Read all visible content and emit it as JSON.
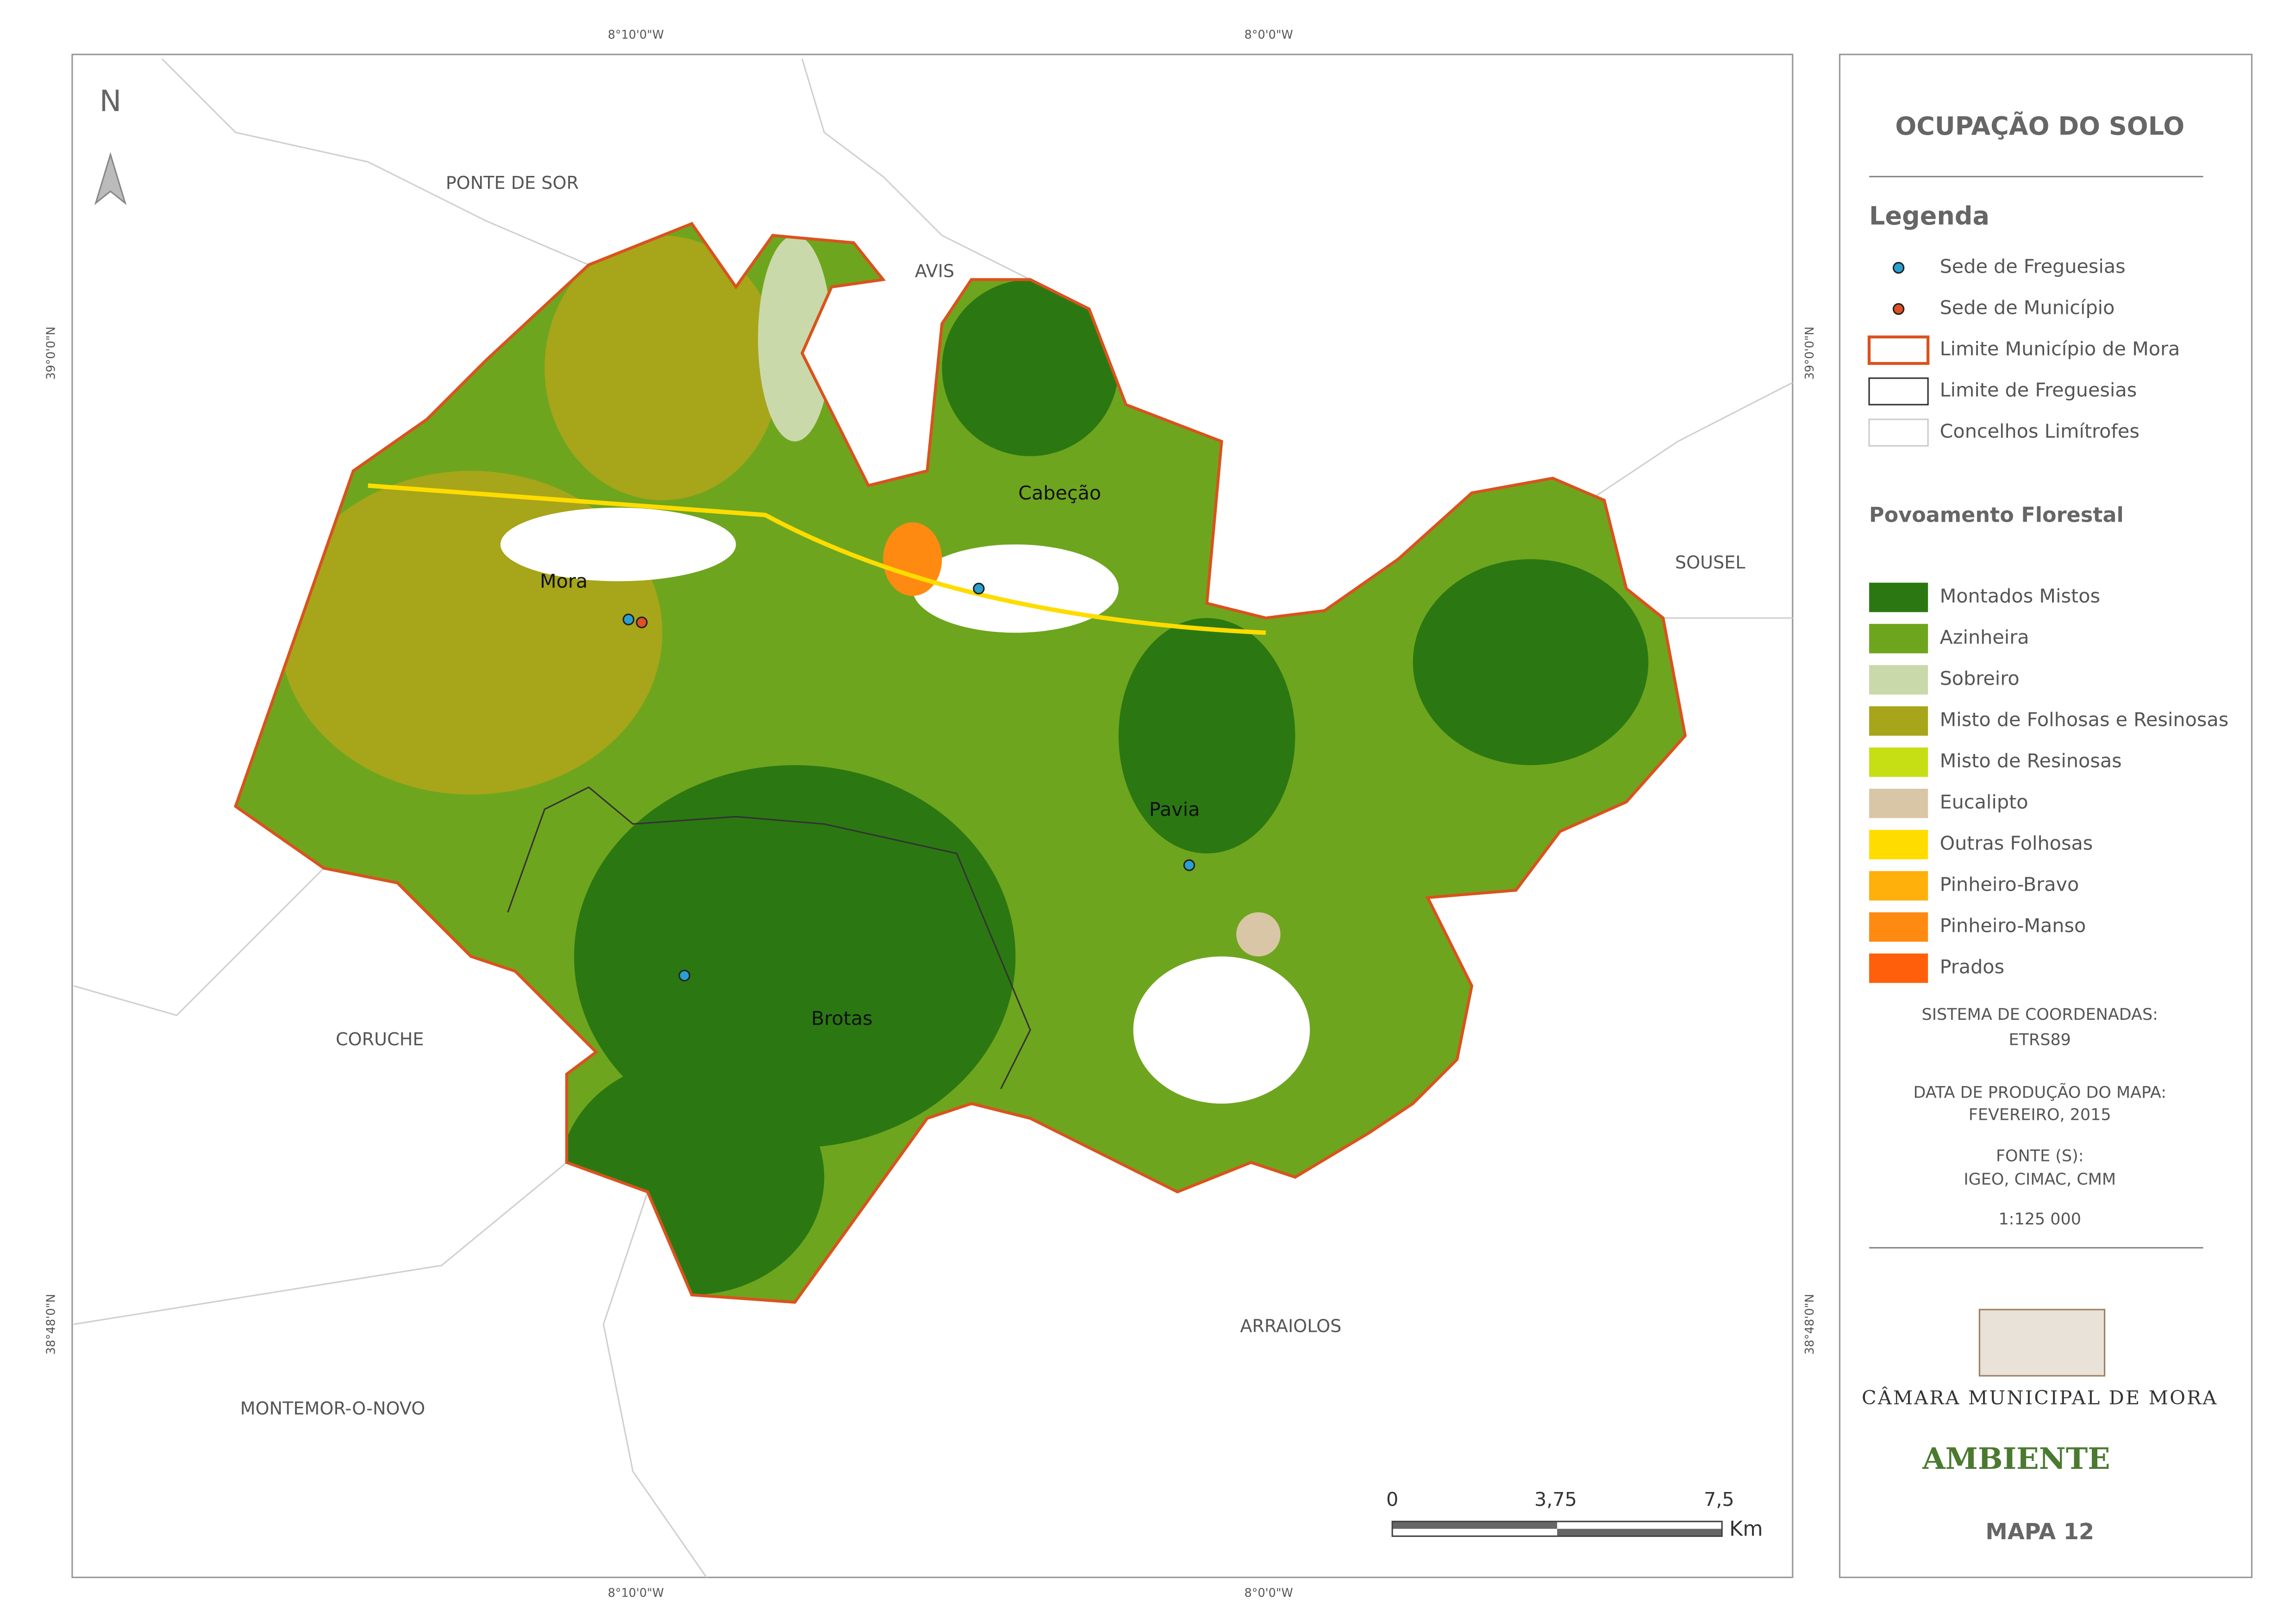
{
  "map": {
    "north": "N",
    "coordinate_labels": {
      "top": [
        "8°10'0\"W",
        "8°0'0\"W"
      ],
      "bottom": [
        "8°10'0\"W",
        "8°0'0\"W"
      ],
      "left": [
        "39°0'0\"N",
        "38°48'0\"N"
      ],
      "right": [
        "39°0'0\"N",
        "38°48'0\"N"
      ]
    },
    "places": [
      "PONTE DE SOR",
      "AVIS",
      "SOUSEL",
      "CORUCHE",
      "ARRAIOLOS",
      "MONTEMOR-O-NOVO"
    ],
    "towns": [
      "Mora",
      "Cabeção",
      "Pavia",
      "Brotas"
    ],
    "scale": {
      "labels": [
        "0",
        "3,75",
        "7,5"
      ],
      "unit": "Km"
    }
  },
  "panel": {
    "title": "OCUPAÇÃO DO SOLO",
    "legend_title": "Legenda",
    "symbols": [
      {
        "label": "Sede de Freguesias",
        "color": "#2aa0d0"
      },
      {
        "label": "Sede de Município",
        "color": "#e05020"
      },
      {
        "label": "Limite Município de Mora",
        "color": "#d9531e"
      },
      {
        "label": "Limite de Freguesias",
        "color": "#333333"
      },
      {
        "label": "Concelhos Limítrofes",
        "color": "#cccccc"
      }
    ],
    "forest_title": "Povoamento Florestal",
    "forest": [
      {
        "label": "Montados Mistos",
        "color": "#2b7812"
      },
      {
        "label": "Azinheira",
        "color": "#6ea51e"
      },
      {
        "label": "Sobreiro",
        "color": "#c9d9aa"
      },
      {
        "label": "Misto de Folhosas e Resinosas",
        "color": "#a7a519"
      },
      {
        "label": "Misto de Resinosas",
        "color": "#c6df14"
      },
      {
        "label": "Eucalipto",
        "color": "#d9c6a6"
      },
      {
        "label": "Outras Folhosas",
        "color": "#ffdc00"
      },
      {
        "label": "Pinheiro-Bravo",
        "color": "#ffb00a"
      },
      {
        "label": "Pinheiro-Manso",
        "color": "#ff8a12"
      },
      {
        "label": "Prados",
        "color": "#ff5f0a"
      }
    ],
    "info": [
      "SISTEMA DE COORDENADAS:",
      "ETRS89",
      "DATA DE PRODUÇÃO DO MAPA:",
      "FEVEREIRO, 2015",
      "FONTE (S):",
      "IGEO, CIMAC, CMM",
      "1:125 000"
    ],
    "logo": {
      "name": "CÂMARA MUNICIPAL DE MORA",
      "brand": "AMBIENTE"
    },
    "map_number": "MAPA 12"
  }
}
